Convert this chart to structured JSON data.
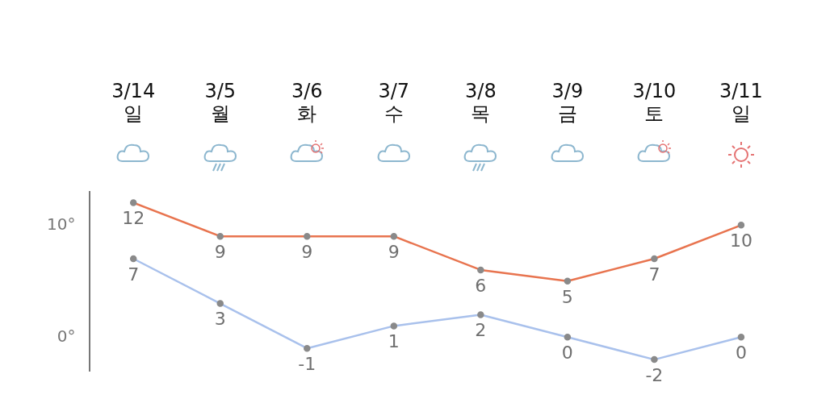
{
  "chart_data": {
    "type": "line",
    "categories": [
      "3/14\n일",
      "3/5\n월",
      "3/6\n화",
      "3/7\n수",
      "3/8\n목",
      "3/9\n금",
      "3/10\n토",
      "3/11\n일"
    ],
    "series": [
      {
        "color": "#e8744f",
        "values": [
          12,
          9,
          9,
          9,
          6,
          5,
          7,
          10
        ]
      },
      {
        "color": "#a9c1ec",
        "values": [
          7,
          3,
          -1,
          1,
          2,
          0,
          -2,
          0
        ]
      }
    ],
    "ylim": [
      -3,
      13
    ],
    "yticks": [
      {
        "value": 0,
        "label": "0°"
      },
      {
        "value": 10,
        "label": "10°"
      }
    ],
    "grid": false,
    "legend": false,
    "marker": "circle",
    "line_style": "solid",
    "data_labels": true
  }
}
